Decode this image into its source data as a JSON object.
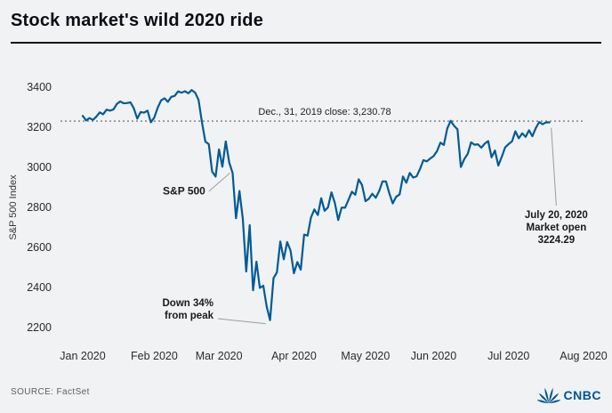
{
  "header": {
    "title": "Stock market's wild 2020 ride"
  },
  "footer": {
    "source": "SOURCE: FactSet",
    "logo_text": "CNBC",
    "logo_icon": "cnbc-peacock-icon",
    "brand_color": "#005594"
  },
  "chart_data": {
    "type": "line",
    "title": "Stock market's wild 2020 ride",
    "ylabel": "S&P 500 Index",
    "ylim": [
      2200,
      3400
    ],
    "yticks": [
      3400,
      3200,
      3000,
      2800,
      2600,
      2400,
      2200
    ],
    "xtick_labels": [
      "Jan 2020",
      "Feb 2020",
      "Mar 2020",
      "Apr 2020",
      "May 2020",
      "Jun 2020",
      "Jul 2020",
      "Aug 2020"
    ],
    "xtick_indices": [
      0,
      21,
      40,
      62,
      83,
      103,
      125,
      147
    ],
    "grid": "off",
    "legend": "none",
    "line_color": "#005b94",
    "reference_line": {
      "value": 3230.78,
      "label": "Dec., 31, 2019 close:  3,230.78",
      "style": "dotted",
      "color": "#8a8d90"
    },
    "annotations": {
      "series_label": "S&P 500",
      "trough_line1": "Down 34%",
      "trough_line2": "from peak",
      "latest_line1": "July 20, 2020",
      "latest_line2": "Market open",
      "latest_line3": "3224.29"
    },
    "series": [
      {
        "name": "S&P 500",
        "x_unit": "trading-day-index",
        "values": [
          3257,
          3234,
          3246,
          3237,
          3253,
          3274,
          3265,
          3288,
          3283,
          3289,
          3316,
          3329,
          3320,
          3321,
          3325,
          3295,
          3243,
          3276,
          3273,
          3283,
          3225,
          3248,
          3297,
          3334,
          3345,
          3327,
          3352,
          3357,
          3379,
          3373,
          3380,
          3370,
          3386,
          3373,
          3337,
          3226,
          3128,
          3116,
          2978,
          2954,
          3090,
          3003,
          3130,
          3024,
          2972,
          2746,
          2882,
          2741,
          2480,
          2711,
          2386,
          2529,
          2398,
          2409,
          2305,
          2237,
          2447,
          2475,
          2630,
          2541,
          2627,
          2585,
          2471,
          2527,
          2489,
          2664,
          2659,
          2750,
          2790,
          2762,
          2846,
          2783,
          2800,
          2875,
          2823,
          2737,
          2799,
          2798,
          2837,
          2878,
          2863,
          2940,
          2912,
          2831,
          2843,
          2868,
          2848,
          2881,
          2930,
          2930,
          2870,
          2820,
          2853,
          2864,
          2954,
          2923,
          2972,
          2949,
          2955,
          2992,
          3036,
          3030,
          3044,
          3056,
          3081,
          3123,
          3112,
          3194,
          3232,
          3207,
          3190,
          3002,
          3041,
          3067,
          3125,
          3113,
          3115,
          3098,
          3118,
          3131,
          3050,
          3084,
          3009,
          3053,
          3100,
          3116,
          3130,
          3180,
          3145,
          3170,
          3152,
          3185,
          3155,
          3197,
          3226,
          3215,
          3225,
          3224.29
        ]
      }
    ]
  }
}
